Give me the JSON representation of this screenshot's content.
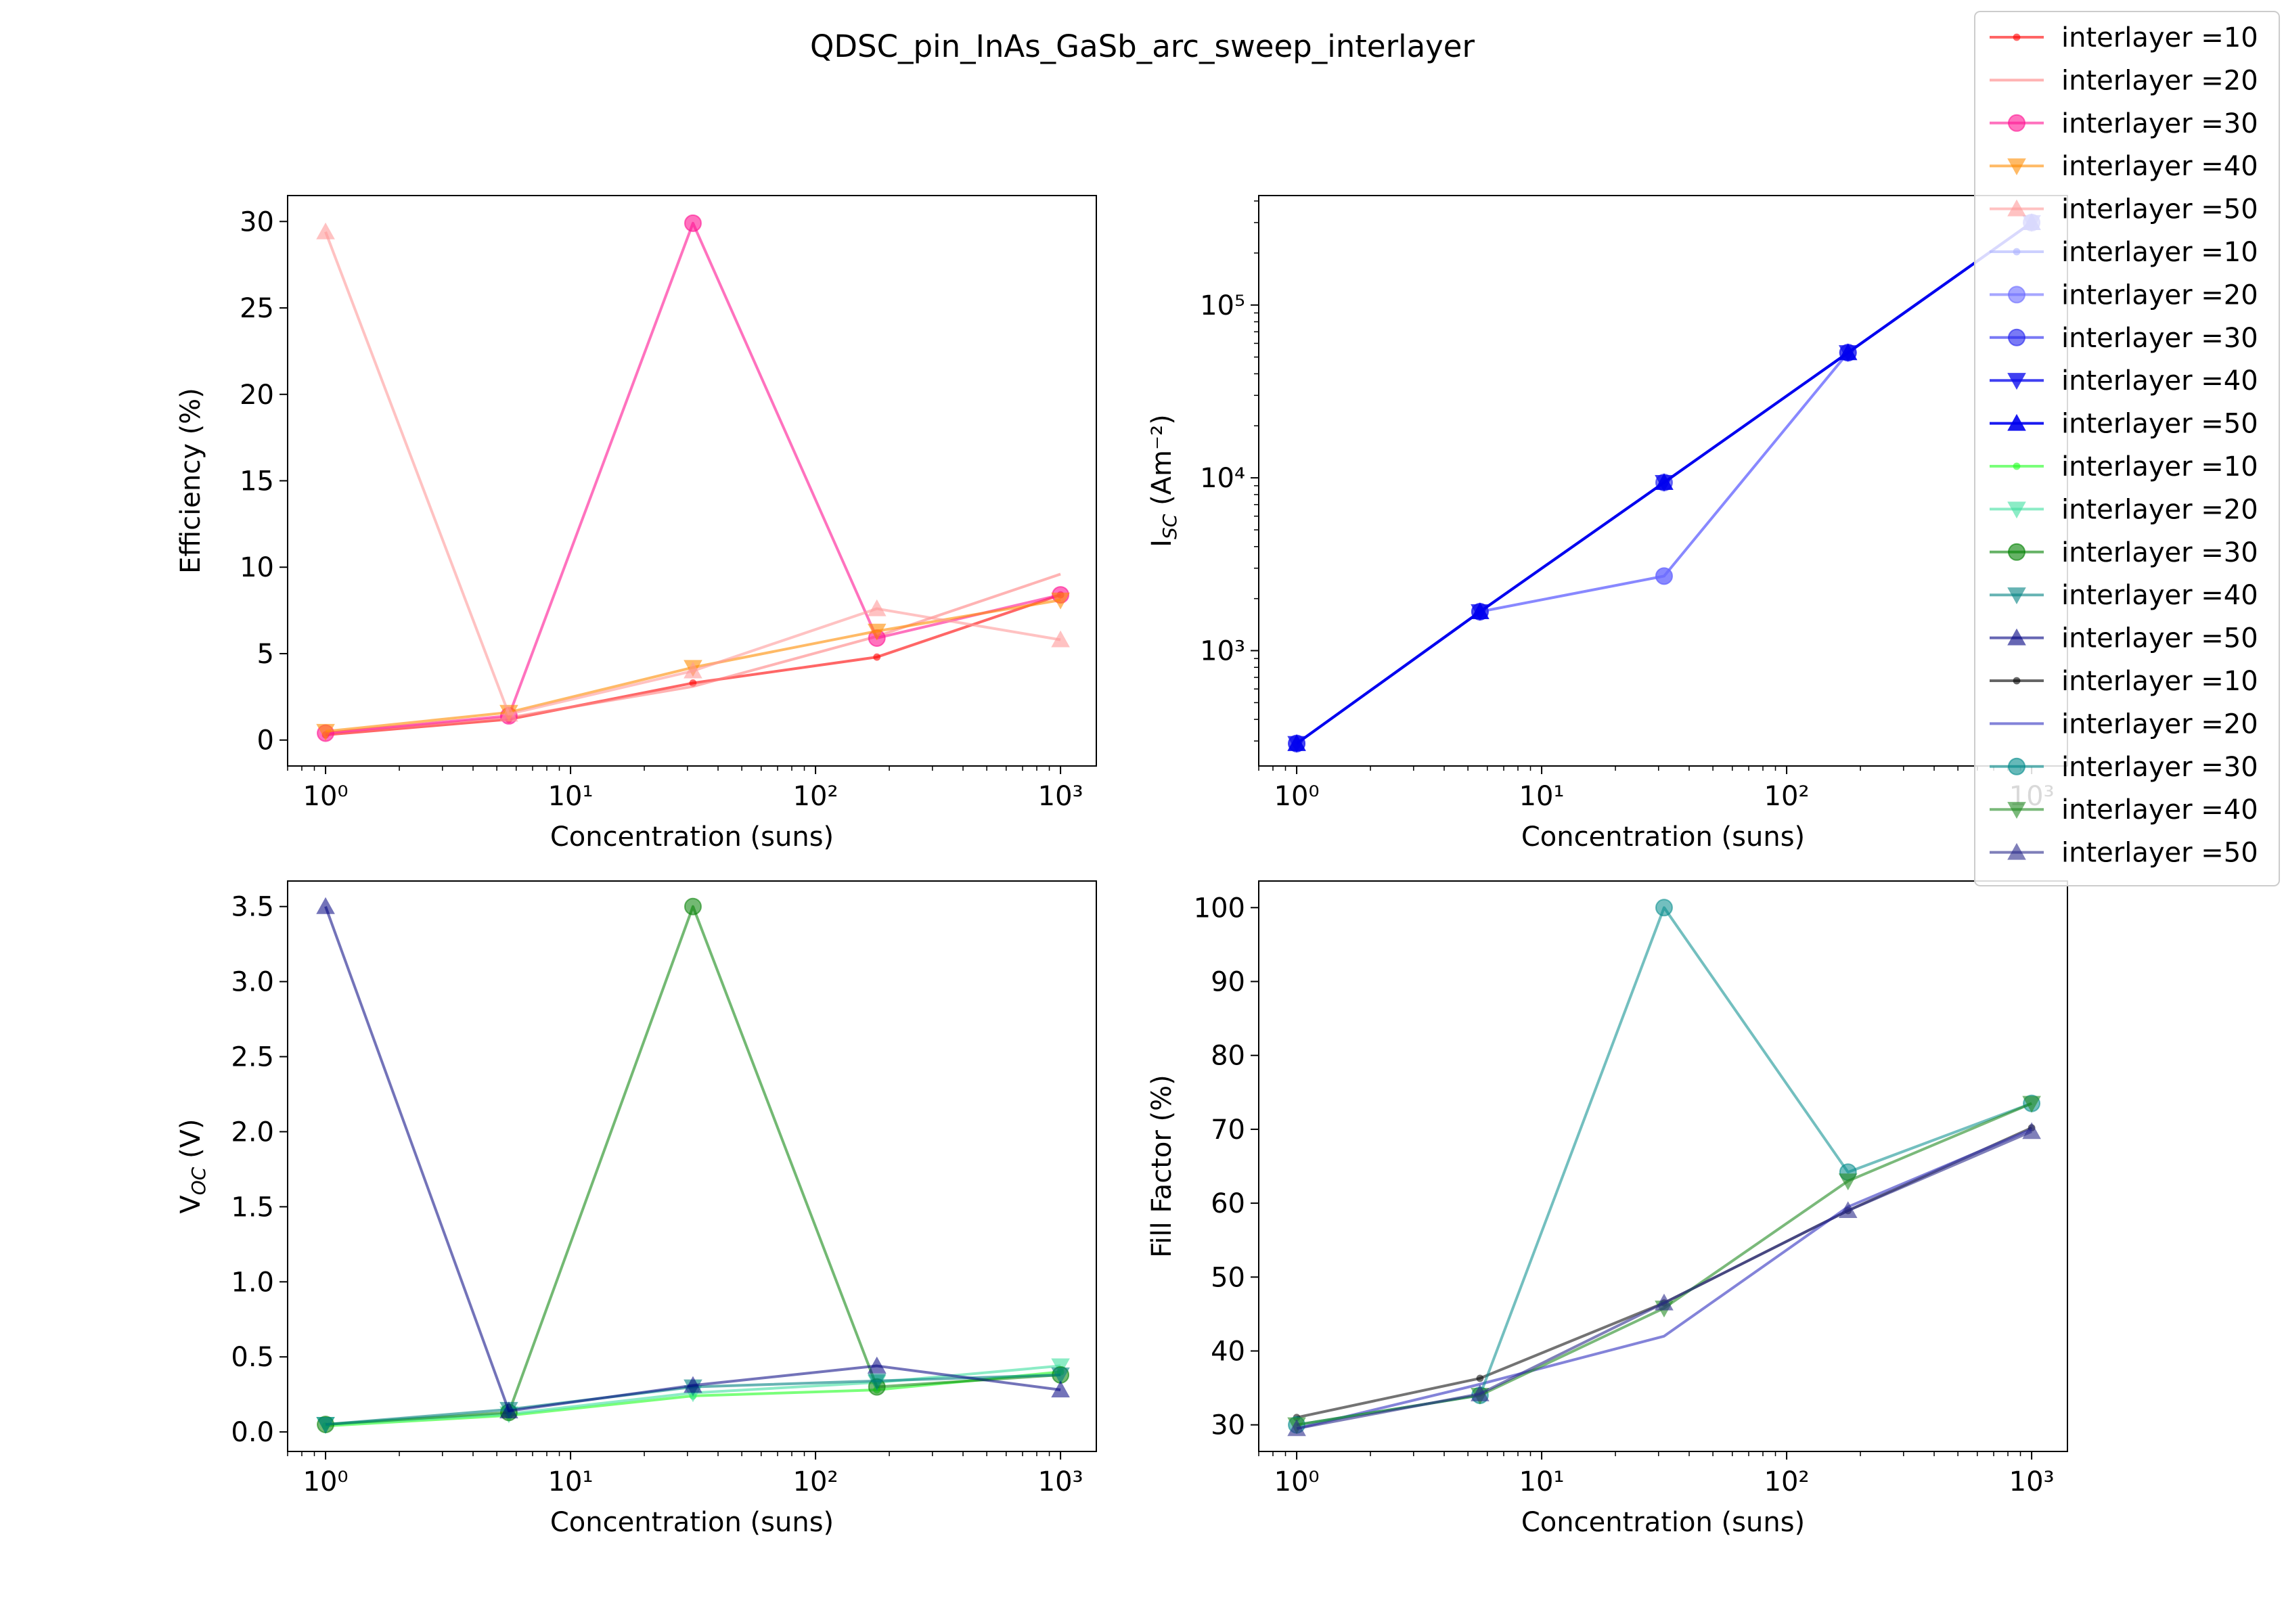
{
  "figure": {
    "title": "QDSC_pin_InAs_GaSb_arc_sweep_interlayer"
  },
  "xlabel": "Concentration (suns)",
  "legend": {
    "placement": "top-right",
    "entries": [
      {
        "label": "interlayer =10",
        "color": "#ff0000",
        "alpha": 0.6,
        "marker": "point"
      },
      {
        "label": "interlayer =20",
        "color": "#ff8080",
        "alpha": 0.6,
        "marker": "none"
      },
      {
        "label": "interlayer =30",
        "color": "#ff1493",
        "alpha": 0.6,
        "marker": "circle"
      },
      {
        "label": "interlayer =40",
        "color": "#ff8c00",
        "alpha": 0.6,
        "marker": "triangle-down"
      },
      {
        "label": "interlayer =50",
        "color": "#ff9999",
        "alpha": 0.6,
        "marker": "triangle-up"
      },
      {
        "label": "interlayer =10",
        "color": "#aab0ff",
        "alpha": 0.6,
        "marker": "point"
      },
      {
        "label": "interlayer =20",
        "color": "#6a6aff",
        "alpha": 0.6,
        "marker": "circle"
      },
      {
        "label": "interlayer =30",
        "color": "#2222ee",
        "alpha": 0.6,
        "marker": "circle"
      },
      {
        "label": "interlayer =40",
        "color": "#1010ee",
        "alpha": 0.8,
        "marker": "triangle-down"
      },
      {
        "label": "interlayer =50",
        "color": "#0000ee",
        "alpha": 0.9,
        "marker": "triangle-up"
      },
      {
        "label": "interlayer =10",
        "color": "#22ff22",
        "alpha": 0.6,
        "marker": "point"
      },
      {
        "label": "interlayer =20",
        "color": "#40e0a0",
        "alpha": 0.6,
        "marker": "triangle-down"
      },
      {
        "label": "interlayer =30",
        "color": "#008000",
        "alpha": 0.6,
        "marker": "circle"
      },
      {
        "label": "interlayer =40",
        "color": "#008080",
        "alpha": 0.6,
        "marker": "triangle-down"
      },
      {
        "label": "interlayer =50",
        "color": "#000080",
        "alpha": 0.6,
        "marker": "triangle-up"
      },
      {
        "label": "interlayer =10",
        "color": "#000000",
        "alpha": 0.6,
        "marker": "point"
      },
      {
        "label": "interlayer =20",
        "color": "#3030c0",
        "alpha": 0.6,
        "marker": "none"
      },
      {
        "label": "interlayer =30",
        "color": "#008b8b",
        "alpha": 0.6,
        "marker": "circle"
      },
      {
        "label": "interlayer =40",
        "color": "#228b22",
        "alpha": 0.6,
        "marker": "triangle-down"
      },
      {
        "label": "interlayer =50",
        "color": "#2a2a8a",
        "alpha": 0.6,
        "marker": "triangle-up"
      }
    ]
  },
  "chart_data": [
    {
      "type": "line",
      "title": "",
      "xlabel": "Concentration (suns)",
      "ylabel": "Efficiency (%)",
      "xscale": "log",
      "xlim": [
        0.7,
        1400
      ],
      "ylim": [
        -1.5,
        31.5
      ],
      "xticks": [
        "10⁰",
        "10¹",
        "10²",
        "10³"
      ],
      "yticks": [
        "0",
        "5",
        "10",
        "15",
        "20",
        "25",
        "30"
      ],
      "x": [
        1,
        5.6,
        31.6,
        178,
        1000
      ],
      "series": [
        {
          "name": "interlayer =10",
          "values": [
            0.3,
            1.2,
            3.3,
            4.8,
            8.4
          ]
        },
        {
          "name": "interlayer =20",
          "values": [
            0.4,
            1.3,
            3.1,
            6.0,
            9.6
          ]
        },
        {
          "name": "interlayer =30",
          "values": [
            0.4,
            1.4,
            29.9,
            5.9,
            8.4
          ]
        },
        {
          "name": "interlayer =40",
          "values": [
            0.5,
            1.6,
            4.2,
            6.3,
            8.1
          ]
        },
        {
          "name": "interlayer =50",
          "values": [
            29.4,
            1.5,
            4.0,
            7.6,
            5.8
          ]
        }
      ]
    },
    {
      "type": "line",
      "title": "",
      "xlabel": "Concentration (suns)",
      "ylabel": "I_SC (Am⁻²)",
      "xscale": "log",
      "yscale": "log",
      "xlim": [
        0.7,
        1400
      ],
      "ylim": [
        215,
        430000
      ],
      "xticks": [
        "10⁰",
        "10¹",
        "10²",
        "10³"
      ],
      "yticks": [
        "10³",
        "10⁴",
        "10⁵"
      ],
      "x": [
        1,
        5.6,
        31.6,
        178,
        1000
      ],
      "series": [
        {
          "name": "interlayer =10",
          "values": [
            290,
            1680,
            9400,
            53000,
            300000
          ]
        },
        {
          "name": "interlayer =20",
          "values": [
            290,
            1680,
            2700,
            53000,
            300000
          ]
        },
        {
          "name": "interlayer =30",
          "values": [
            290,
            1680,
            9400,
            53000,
            300000
          ]
        },
        {
          "name": "interlayer =40",
          "values": [
            290,
            1680,
            9400,
            53000,
            300000
          ]
        },
        {
          "name": "interlayer =50",
          "values": [
            290,
            1680,
            9400,
            53000,
            300000
          ]
        }
      ]
    },
    {
      "type": "line",
      "title": "",
      "xlabel": "Concentration (suns)",
      "ylabel": "V_OC (V)",
      "xscale": "log",
      "xlim": [
        0.7,
        1400
      ],
      "ylim": [
        -0.13,
        3.67
      ],
      "xticks": [
        "10⁰",
        "10¹",
        "10²",
        "10³"
      ],
      "yticks": [
        "0.0",
        "0.5",
        "1.0",
        "1.5",
        "2.0",
        "2.5",
        "3.0",
        "3.5"
      ],
      "x": [
        1,
        5.6,
        31.6,
        178,
        1000
      ],
      "series": [
        {
          "name": "interlayer =10",
          "values": [
            0.04,
            0.11,
            0.24,
            0.28,
            0.4
          ]
        },
        {
          "name": "interlayer =20",
          "values": [
            0.05,
            0.12,
            0.26,
            0.33,
            0.44
          ]
        },
        {
          "name": "interlayer =30",
          "values": [
            0.05,
            0.13,
            3.5,
            0.3,
            0.38
          ]
        },
        {
          "name": "interlayer =40",
          "values": [
            0.05,
            0.15,
            0.3,
            0.34,
            0.38
          ]
        },
        {
          "name": "interlayer =50",
          "values": [
            3.5,
            0.14,
            0.31,
            0.44,
            0.28
          ]
        }
      ]
    },
    {
      "type": "line",
      "title": "",
      "xlabel": "Concentration (suns)",
      "ylabel": "Fill Factor (%)",
      "xscale": "log",
      "xlim": [
        0.7,
        1400
      ],
      "ylim": [
        26.4,
        103.6
      ],
      "xticks": [
        "10⁰",
        "10¹",
        "10²",
        "10³"
      ],
      "yticks": [
        "30",
        "40",
        "50",
        "60",
        "70",
        "80",
        "90",
        "100"
      ],
      "x": [
        1,
        5.6,
        31.6,
        178,
        1000
      ],
      "series": [
        {
          "name": "interlayer =10",
          "values": [
            31.0,
            36.3,
            46.5,
            59.0,
            70.2
          ]
        },
        {
          "name": "interlayer =20",
          "values": [
            29.5,
            35.5,
            42.0,
            59.5,
            70.0
          ]
        },
        {
          "name": "interlayer =30",
          "values": [
            30.0,
            34.0,
            100.0,
            64.2,
            73.5
          ]
        },
        {
          "name": "interlayer =40",
          "values": [
            30.0,
            34.0,
            45.8,
            63.0,
            73.5
          ]
        },
        {
          "name": "interlayer =50",
          "values": [
            29.5,
            34.2,
            46.5,
            59.0,
            69.7
          ]
        }
      ]
    }
  ]
}
